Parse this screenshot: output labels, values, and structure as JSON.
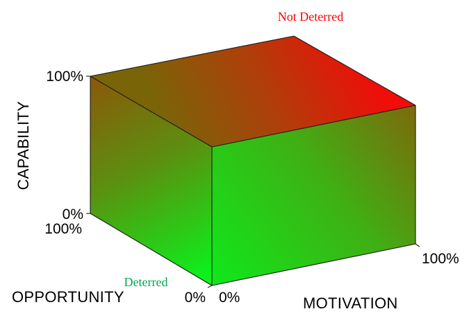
{
  "title": "",
  "regions": {
    "high": {
      "label": "Not Deterred",
      "color": "#ff0000"
    },
    "low": {
      "label": "Deterred",
      "color": "#00a651"
    }
  },
  "axes": {
    "capability": {
      "label": "CAPABILITY",
      "min_label": "0%",
      "max_label": "100%"
    },
    "opportunity": {
      "label": "OPPORTUNITY",
      "min_label": "0%",
      "max_label": "100%"
    },
    "motivation": {
      "label": "MOTIVATION",
      "min_label": "0%",
      "max_label": "100%"
    }
  },
  "gradient": {
    "low_color": "#00ff00",
    "high_color": "#ff0000"
  }
}
